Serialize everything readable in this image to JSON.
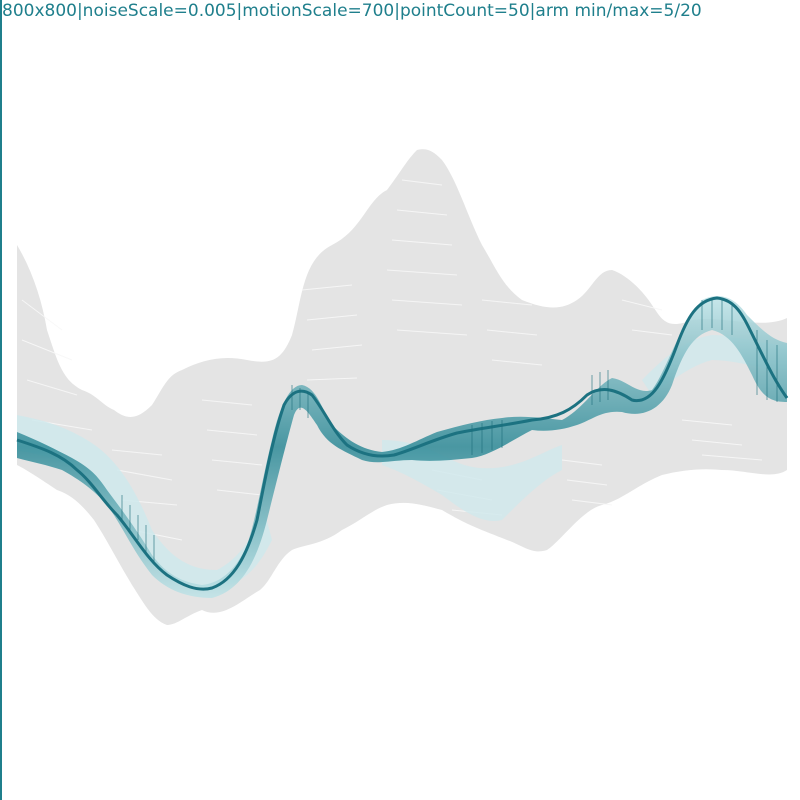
{
  "sketch": {
    "params_text": "800x800|noiseScale=0.005|motionScale=700|pointCount=50|arm min/max=5/20"
  },
  "colors": {
    "background": "#ffffff",
    "ghost": "#e4e4e4",
    "ghost_line": "#f7f7f7",
    "teal_dark": "#1c7281",
    "teal_light": "#bfe3e7",
    "label": "#1f7f8c"
  }
}
